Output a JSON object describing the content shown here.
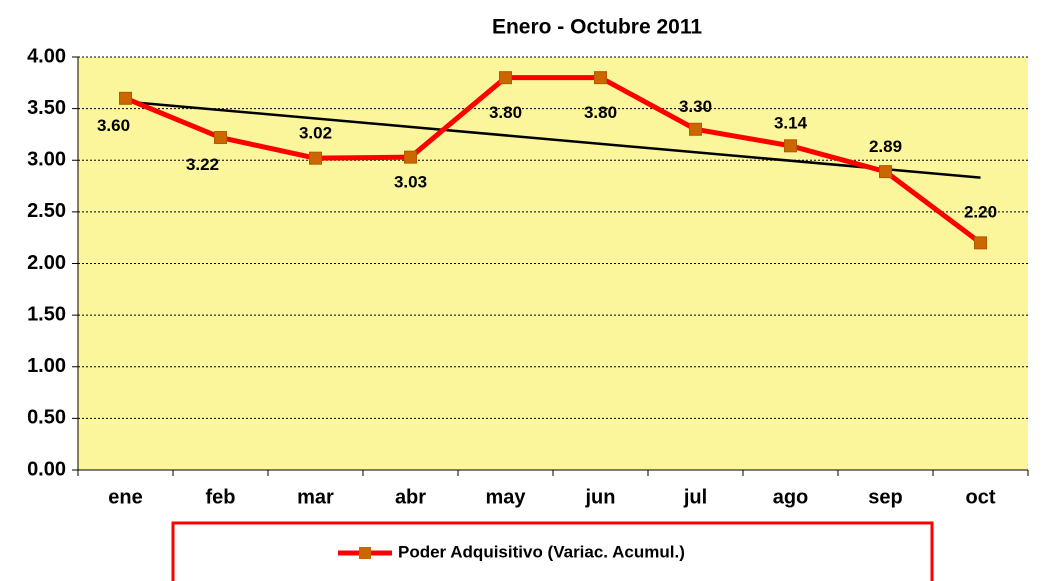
{
  "chart_data": {
    "type": "line",
    "title": "Enero - Octubre 2011",
    "categories": [
      "ene",
      "feb",
      "mar",
      "abr",
      "may",
      "jun",
      "jul",
      "ago",
      "sep",
      "oct"
    ],
    "series": [
      {
        "name": "Poder Adquisitivo (Variac. Acumul.)",
        "color": "#ff0000",
        "marker_color": "#cc6600",
        "values": [
          3.6,
          3.22,
          3.02,
          3.03,
          3.8,
          3.8,
          3.3,
          3.14,
          2.89,
          2.2
        ],
        "value_labels": [
          "3.60",
          "3.22",
          "3.02",
          "3.03",
          "3.80",
          "3.80",
          "3.30",
          "3.14",
          "2.89",
          "2.20"
        ]
      }
    ],
    "trendline": "linear",
    "trendline_color": "#000000",
    "ylim": [
      0,
      4
    ],
    "yticks": [
      {
        "value": 0,
        "label": "0.00"
      },
      {
        "value": 0.5,
        "label": "0.50"
      },
      {
        "value": 1,
        "label": "1.00"
      },
      {
        "value": 1.5,
        "label": "1.50"
      },
      {
        "value": 2,
        "label": "2.00"
      },
      {
        "value": 2.5,
        "label": "2.50"
      },
      {
        "value": 3,
        "label": "3.00"
      },
      {
        "value": 3.5,
        "label": "3.50"
      },
      {
        "value": 4,
        "label": "4.00"
      }
    ],
    "grid": true,
    "plot_background": "#fbf59b",
    "legend": "bottom"
  }
}
